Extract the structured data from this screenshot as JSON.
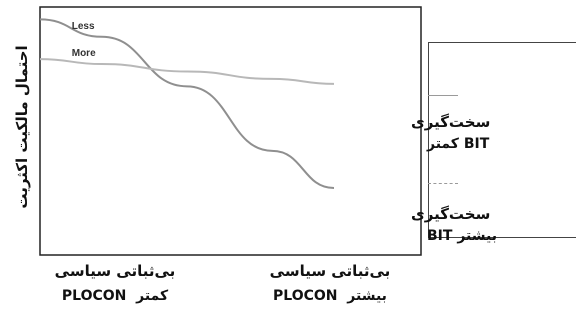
{
  "chart_data": {
    "type": "line",
    "ylabel": "احتمال مالکیت اکثریت",
    "categories": [
      {
        "line1": "بی‌ثباتی سیاسی",
        "line2_a": "کمتر",
        "line2_b": "PLOCON"
      },
      {
        "line1": "بی‌ثباتی سیاسی",
        "line2_a": "بیشتر",
        "line2_b": "PLOCON"
      }
    ],
    "x": [
      0,
      1
    ],
    "ylim": [
      0,
      1
    ],
    "grid": false,
    "series": [
      {
        "name": "Less",
        "x": [
          0,
          0.21,
          0.5,
          0.79,
          1
        ],
        "values": [
          0.95,
          0.88,
          0.68,
          0.42,
          0.27
        ]
      },
      {
        "name": "More",
        "x": [
          0,
          0.21,
          0.5,
          0.79,
          1
        ],
        "values": [
          0.79,
          0.77,
          0.74,
          0.71,
          0.69
        ]
      }
    ],
    "series_colors": [
      "#8f8f8f",
      "#b8b8b8"
    ],
    "legend": {
      "position": "right",
      "items": [
        {
          "line1": "سخت‌گیری",
          "line2_a": "کمتر",
          "line2_b": "BIT",
          "style": "solid"
        },
        {
          "line1": "سخت‌گیری",
          "line2_a": "بیشتر",
          "line2_b": "BIT",
          "style": "dashed"
        }
      ]
    }
  }
}
